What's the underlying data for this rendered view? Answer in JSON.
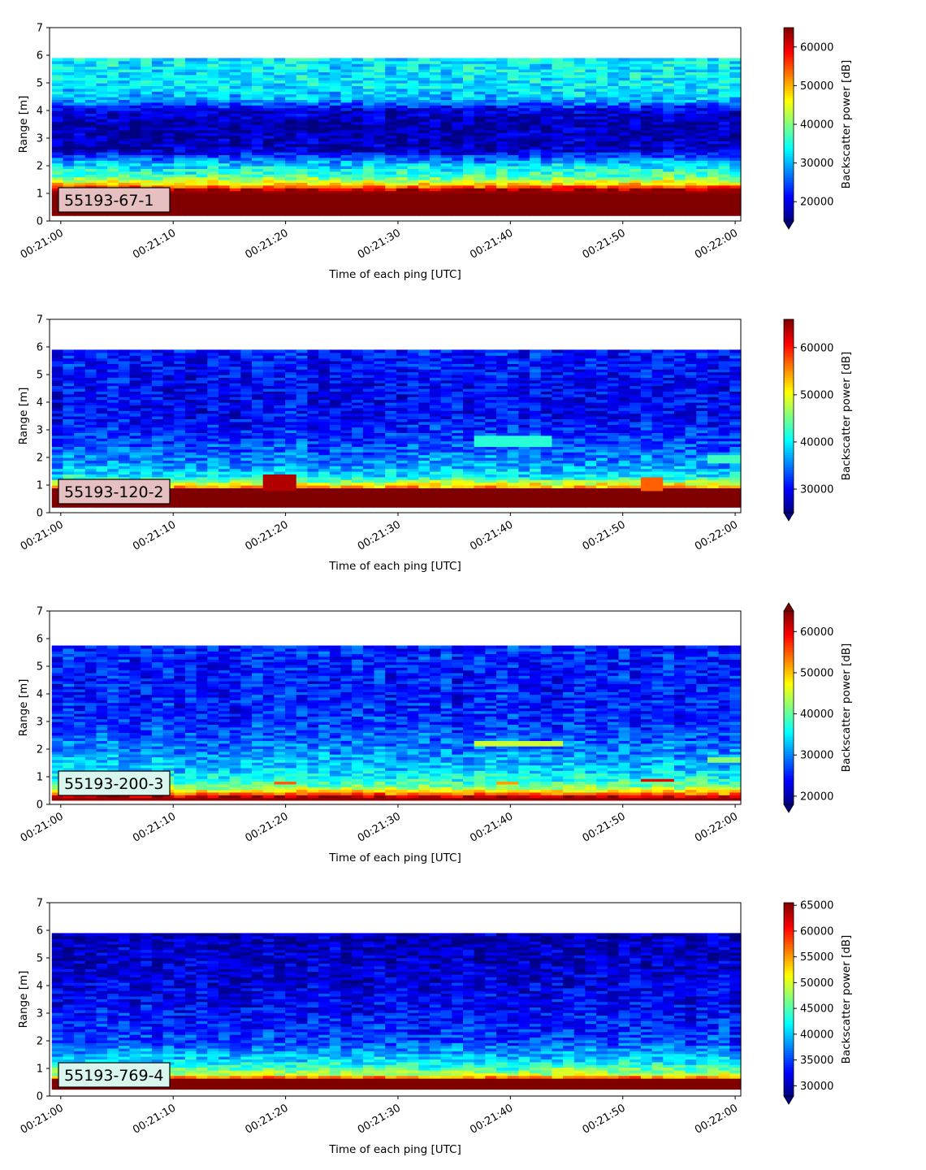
{
  "chart_data": [
    {
      "type": "heatmap",
      "label_box": "55193-67-1",
      "label_box_color": "#e6c0c0",
      "xlabel": "Time of each ping [UTC]",
      "ylabel": "Range [m]",
      "xticks": [
        "00:21:00",
        "00:21:10",
        "00:21:20",
        "00:21:30",
        "00:21:40",
        "00:21:50",
        "00:22:00"
      ],
      "xlim_seconds": [
        -1,
        60.5
      ],
      "ylim": [
        0,
        7
      ],
      "yticks": [
        0,
        1,
        2,
        3,
        4,
        5,
        6,
        7
      ],
      "data_top": 5.9,
      "data_bottom": 0.2,
      "colorbar": {
        "label": "Backscatter power [dB]",
        "colormap": "jet",
        "vmin": 15000,
        "vmax": 65000,
        "ticks": [
          20000,
          30000,
          40000,
          50000,
          60000
        ],
        "extend": "min"
      },
      "profile": [
        [
          0.2,
          65000
        ],
        [
          1.0,
          65000
        ],
        [
          1.15,
          62000
        ],
        [
          1.3,
          50000
        ],
        [
          1.6,
          38000
        ],
        [
          2.1,
          31000
        ],
        [
          2.6,
          18000
        ],
        [
          3.5,
          17000
        ],
        [
          4.0,
          19000
        ],
        [
          4.4,
          30000
        ],
        [
          5.0,
          33000
        ],
        [
          5.9,
          33000
        ]
      ],
      "features": []
    },
    {
      "type": "heatmap",
      "label_box": "55193-120-2",
      "label_box_color": "#e6c0c0",
      "xlabel": "Time of each ping [UTC]",
      "ylabel": "Range [m]",
      "xticks": [
        "00:21:00",
        "00:21:10",
        "00:21:20",
        "00:21:30",
        "00:21:40",
        "00:21:50",
        "00:22:00"
      ],
      "xlim_seconds": [
        -1,
        60.5
      ],
      "ylim": [
        0,
        7
      ],
      "yticks": [
        0,
        1,
        2,
        3,
        4,
        5,
        6,
        7
      ],
      "data_top": 5.9,
      "data_bottom": 0.2,
      "colorbar": {
        "label": "Backscatter power [dB]",
        "colormap": "jet",
        "vmin": 25000,
        "vmax": 66000,
        "ticks": [
          30000,
          40000,
          50000,
          60000
        ],
        "extend": "min"
      },
      "profile": [
        [
          0.2,
          66000
        ],
        [
          0.85,
          66000
        ],
        [
          0.95,
          54000
        ],
        [
          1.3,
          40000
        ],
        [
          1.8,
          36000
        ],
        [
          2.5,
          33000
        ],
        [
          3.5,
          30000
        ],
        [
          4.5,
          30000
        ],
        [
          5.9,
          31000
        ]
      ],
      "features": [
        {
          "t0": 17.5,
          "t1": 21,
          "y0": 0.85,
          "y1": 1.35,
          "value": 64000
        },
        {
          "t0": 51.5,
          "t1": 54,
          "y0": 0.85,
          "y1": 1.25,
          "value": 57000
        },
        {
          "t0": 37,
          "t1": 44,
          "y0": 2.4,
          "y1": 2.8,
          "value": 42000
        },
        {
          "t0": 58,
          "t1": 61,
          "y0": 1.8,
          "y1": 2.1,
          "value": 43000
        }
      ]
    },
    {
      "type": "heatmap",
      "label_box": "55193-200-3",
      "label_box_color": "#d8f5ee",
      "xlabel": "Time of each ping [UTC]",
      "ylabel": "Range [m]",
      "xticks": [
        "00:21:00",
        "00:21:10",
        "00:21:20",
        "00:21:30",
        "00:21:40",
        "00:21:50",
        "00:22:00"
      ],
      "xlim_seconds": [
        -1,
        60.5
      ],
      "ylim": [
        0,
        7
      ],
      "yticks": [
        0,
        1,
        2,
        3,
        4,
        5,
        6,
        7
      ],
      "data_top": 5.75,
      "data_bottom": 0.15,
      "colorbar": {
        "label": "Backscatter power [dB]",
        "colormap": "jet",
        "vmin": 18000,
        "vmax": 65000,
        "ticks": [
          20000,
          30000,
          40000,
          50000,
          60000
        ],
        "extend": "both"
      },
      "profile": [
        [
          0.15,
          65000
        ],
        [
          0.3,
          62000
        ],
        [
          0.45,
          50000
        ],
        [
          0.7,
          40000
        ],
        [
          1.2,
          34000
        ],
        [
          2.0,
          30000
        ],
        [
          3.0,
          26000
        ],
        [
          4.5,
          25000
        ],
        [
          5.75,
          26000
        ]
      ],
      "features": [
        {
          "t0": 18.5,
          "t1": 20.5,
          "y0": 0.75,
          "y1": 0.85,
          "value": 55000
        },
        {
          "t0": 51.5,
          "t1": 54.5,
          "y0": 0.8,
          "y1": 0.9,
          "value": 60000
        },
        {
          "t0": 38.5,
          "t1": 41,
          "y0": 0.7,
          "y1": 0.8,
          "value": 52000
        },
        {
          "t0": 37,
          "t1": 45,
          "y0": 2.15,
          "y1": 2.3,
          "value": 45000
        },
        {
          "t0": 58,
          "t1": 61,
          "y0": 1.55,
          "y1": 1.7,
          "value": 42000
        }
      ]
    },
    {
      "type": "heatmap",
      "label_box": "55193-769-4",
      "label_box_color": "#d8f5ee",
      "xlabel": "Time of each ping [UTC]",
      "ylabel": "Range [m]",
      "xticks": [
        "00:21:00",
        "00:21:10",
        "00:21:20",
        "00:21:30",
        "00:21:40",
        "00:21:50",
        "00:22:00"
      ],
      "xlim_seconds": [
        -1,
        60.5
      ],
      "ylim": [
        0,
        7
      ],
      "yticks": [
        0,
        1,
        2,
        3,
        4,
        5,
        6,
        7
      ],
      "data_top": 5.9,
      "data_bottom": 0.25,
      "colorbar": {
        "label": "Backscatter power [dB]",
        "colormap": "jet",
        "vmin": 28000,
        "vmax": 65500,
        "ticks": [
          30000,
          35000,
          40000,
          45000,
          50000,
          55000,
          60000,
          65000
        ],
        "extend": "min"
      },
      "profile": [
        [
          0.25,
          65500
        ],
        [
          0.6,
          65500
        ],
        [
          0.75,
          50000
        ],
        [
          1.0,
          45000
        ],
        [
          1.4,
          40000
        ],
        [
          2.0,
          35000
        ],
        [
          3.0,
          33000
        ],
        [
          4.5,
          31000
        ],
        [
          5.9,
          30000
        ]
      ],
      "features": [
        {
          "t0": 43.5,
          "t1": 46,
          "y0": 0.75,
          "y1": 1.0,
          "value": 50000
        }
      ]
    }
  ]
}
